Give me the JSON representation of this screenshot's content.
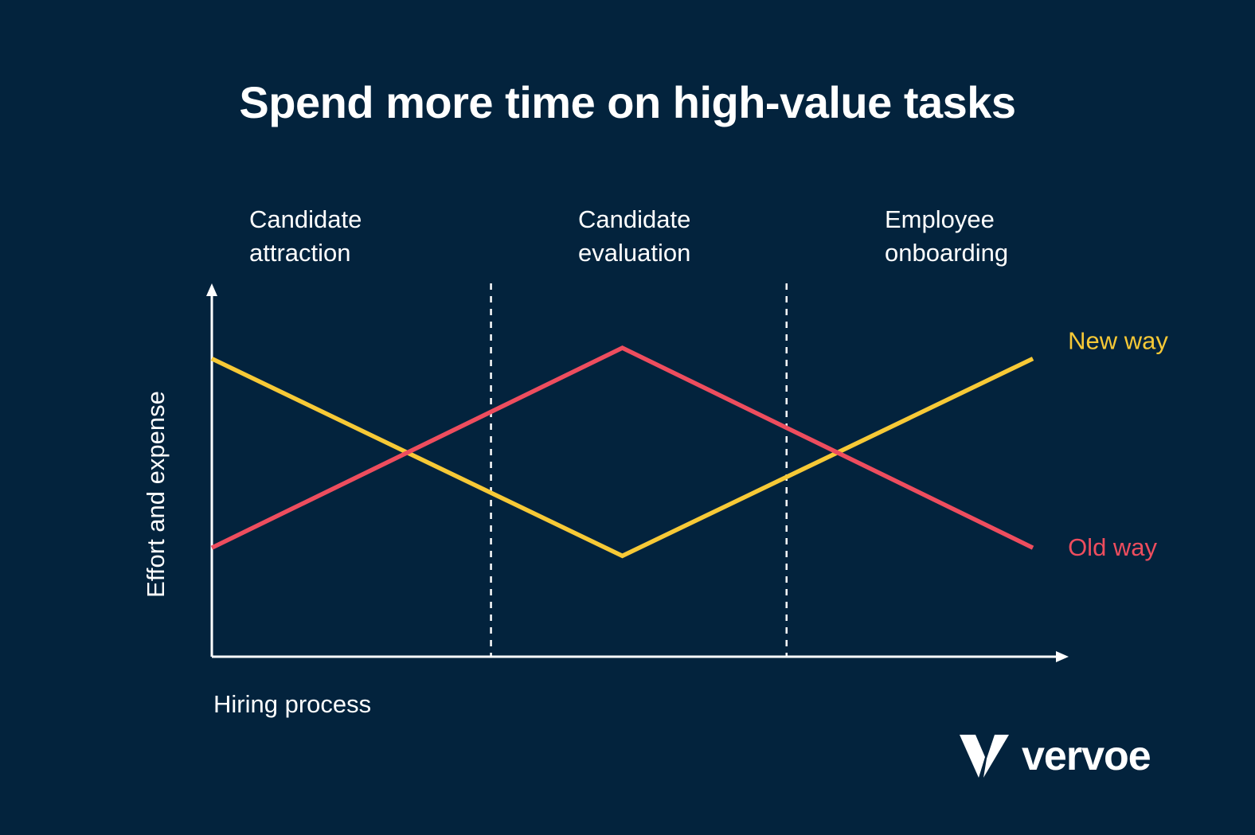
{
  "title": "Spend more time on high-value tasks",
  "chart_data": {
    "type": "line",
    "title": "Spend more time on high-value tasks",
    "xlabel": "Hiring process",
    "ylabel": "Effort and expense",
    "phases": [
      {
        "label": "Candidate\nattraction"
      },
      {
        "label": "Candidate\nevaluation"
      },
      {
        "label": "Employee\nonboarding"
      }
    ],
    "x": [
      0,
      0.5,
      1
    ],
    "xlim": [
      0,
      1.03
    ],
    "ylim": [
      0,
      1.05
    ],
    "dividers": [
      0.34,
      0.7
    ],
    "grid": false,
    "legend": "direct labels at right end of lines",
    "series": [
      {
        "name": "New way",
        "values": [
          1.0,
          0.27,
          1.0
        ],
        "color": "#f7c936"
      },
      {
        "name": "Old way",
        "values": [
          0.3,
          1.04,
          0.3
        ],
        "color": "#ee4d5e"
      }
    ]
  },
  "brand": {
    "name": "vervoe",
    "icon": "vervoe-v-logo-icon"
  },
  "colors": {
    "background": "#03233d",
    "axis": "#ffffff"
  }
}
